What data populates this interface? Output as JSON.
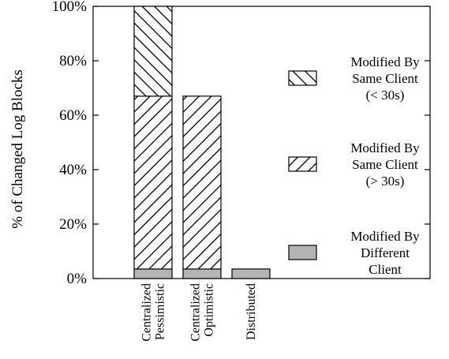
{
  "chart_data": {
    "type": "bar",
    "stacked": true,
    "title": "",
    "xlabel": "",
    "ylabel": "% of Changed Log Blocks",
    "ylim": [
      0,
      100
    ],
    "y_ticks": [
      "0%",
      "20%",
      "40%",
      "60%",
      "80%",
      "100%"
    ],
    "categories": [
      [
        "Centralized",
        "Pessimistic"
      ],
      [
        "Centralized",
        "Optimistic"
      ],
      [
        "Distributed"
      ]
    ],
    "series": [
      {
        "name": [
          "Modified By",
          "Different",
          "Client"
        ],
        "fill": "gray",
        "values": [
          3.5,
          3.5,
          3.5
        ]
      },
      {
        "name": [
          "Modified By",
          "Same Client",
          "(> 30s)"
        ],
        "fill": "hatch-forward",
        "values": [
          63.5,
          63.5,
          0
        ]
      },
      {
        "name": [
          "Modified By",
          "Same Client",
          "(< 30s)"
        ],
        "fill": "hatch-backward",
        "values": [
          33,
          0,
          0
        ]
      }
    ],
    "legend_position": "right",
    "grid": false,
    "colors": {
      "gray": "#b4b4b4",
      "stroke": "#000000",
      "background": "#ffffff"
    }
  }
}
